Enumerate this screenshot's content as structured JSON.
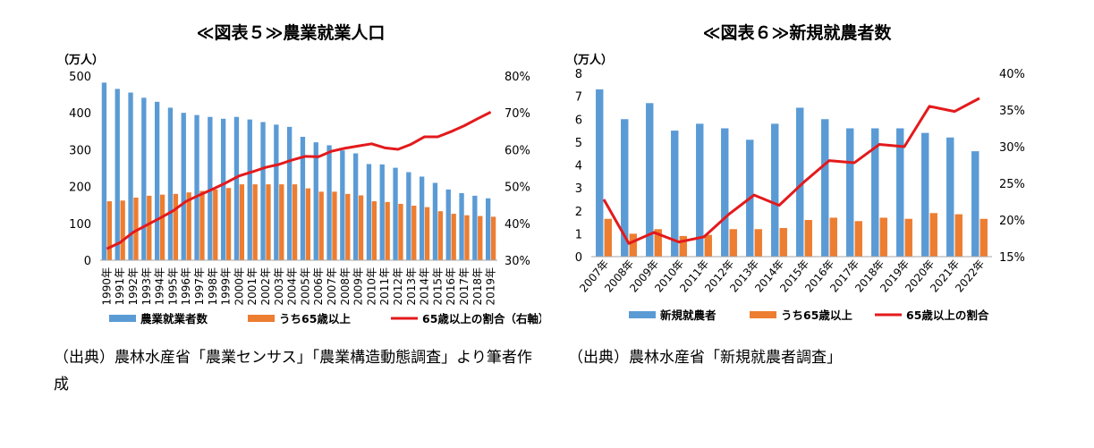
{
  "colors": {
    "bar_main": "#5B9BD5",
    "bar_sub": "#ED7D31",
    "line": "#E31A1C",
    "axis": "#A6A6A6"
  },
  "figure5": {
    "source_text": "（出典）農林水産省「農業センサス」「農業構造動態調査」より筆者作成",
    "chart_data": {
      "type": "bar",
      "title": "≪図表５≫農業就業人口",
      "unit_label": "（万人）",
      "categories": [
        "1990年",
        "1991年",
        "1992年",
        "1993年",
        "1994年",
        "1995年",
        "1996年",
        "1997年",
        "1998年",
        "1999年",
        "2000年",
        "2001年",
        "2002年",
        "2003年",
        "2004年",
        "2005年",
        "2006年",
        "2007年",
        "2008年",
        "2009年",
        "2010年",
        "2011年",
        "2012年",
        "2013年",
        "2014年",
        "2015年",
        "2016年",
        "2017年",
        "2018年",
        "2019年"
      ],
      "y_left": {
        "min": 0,
        "max": 500,
        "ticks": [
          0,
          100,
          200,
          300,
          400,
          500
        ],
        "tick_labels": [
          "0",
          "100",
          "200",
          "300",
          "400",
          "500"
        ]
      },
      "y_right": {
        "min": 30,
        "max": 80,
        "ticks": [
          30,
          40,
          50,
          60,
          70,
          80
        ],
        "tick_labels": [
          "30%",
          "40%",
          "50%",
          "60%",
          "70%",
          "80%"
        ]
      },
      "series": [
        {
          "name": "農業就業者数",
          "type": "bar",
          "axis": "left",
          "values": [
            482,
            465,
            455,
            441,
            430,
            414,
            400,
            394,
            389,
            384,
            389,
            382,
            375,
            368,
            362,
            335,
            320,
            312,
            298,
            290,
            261,
            260,
            251,
            239,
            227,
            210,
            192,
            182,
            175,
            168
          ]
        },
        {
          "name": "うち65歳以上",
          "type": "bar",
          "axis": "left",
          "values": [
            160,
            162,
            170,
            175,
            178,
            180,
            184,
            188,
            192,
            196,
            206,
            206,
            206,
            206,
            206,
            195,
            186,
            186,
            180,
            176,
            160,
            158,
            153,
            148,
            144,
            133,
            126,
            122,
            120,
            118
          ]
        },
        {
          "name": "65歳以上の割合（右軸）",
          "type": "line",
          "axis": "right",
          "values": [
            33.1,
            34.8,
            37.6,
            39.5,
            41.4,
            43.4,
            46.0,
            47.7,
            49.3,
            51.0,
            52.9,
            54.0,
            55.2,
            56.0,
            57.2,
            58.2,
            58.1,
            59.6,
            60.4,
            61.0,
            61.6,
            60.5,
            60.1,
            61.5,
            63.5,
            63.5,
            64.9,
            66.5,
            68.4,
            70.2
          ]
        }
      ],
      "legend": [
        "農業就業者数",
        "うち65歳以上",
        "65歳以上の割合（右軸）"
      ],
      "legend_position": "bottom"
    }
  },
  "figure6": {
    "source_text": "（出典）農林水産省「新規就農者調査」",
    "chart_data": {
      "type": "bar",
      "title": "≪図表６≫新規就農者数",
      "unit_label": "（万人）",
      "categories": [
        "2007年",
        "2008年",
        "2009年",
        "2010年",
        "2011年",
        "2012年",
        "2013年",
        "2014年",
        "2015年",
        "2016年",
        "2017年",
        "2018年",
        "2019年",
        "2020年",
        "2021年",
        "2022年"
      ],
      "y_left": {
        "min": 0,
        "max": 8,
        "ticks": [
          0,
          1,
          2,
          3,
          4,
          5,
          6,
          7,
          8
        ],
        "tick_labels": [
          "0",
          "1",
          "2",
          "3",
          "4",
          "5",
          "6",
          "7",
          "8"
        ]
      },
      "y_right": {
        "min": 15,
        "max": 40,
        "ticks": [
          15,
          20,
          25,
          30,
          35,
          40
        ],
        "tick_labels": [
          "15%",
          "20%",
          "25%",
          "30%",
          "35%",
          "40%"
        ]
      },
      "series": [
        {
          "name": "新規就農者",
          "type": "bar",
          "axis": "left",
          "values": [
            7.3,
            6.0,
            6.7,
            5.5,
            5.8,
            5.6,
            5.1,
            5.8,
            6.5,
            6.0,
            5.6,
            5.6,
            5.6,
            5.4,
            5.2,
            4.6
          ]
        },
        {
          "name": "うち65歳以上",
          "type": "bar",
          "axis": "left",
          "values": [
            1.65,
            1.0,
            1.2,
            0.9,
            0.95,
            1.2,
            1.2,
            1.25,
            1.6,
            1.7,
            1.55,
            1.7,
            1.65,
            1.9,
            1.85,
            1.65
          ]
        },
        {
          "name": "65歳以上の割合",
          "type": "line",
          "axis": "right",
          "values": [
            22.8,
            16.8,
            18.3,
            17.0,
            17.7,
            20.8,
            23.4,
            22.0,
            25.2,
            28.1,
            27.8,
            30.3,
            30.0,
            35.5,
            34.8,
            36.6
          ]
        }
      ],
      "legend": [
        "新規就農者",
        "うち65歳以上",
        "65歳以上の割合"
      ],
      "legend_position": "bottom"
    }
  }
}
